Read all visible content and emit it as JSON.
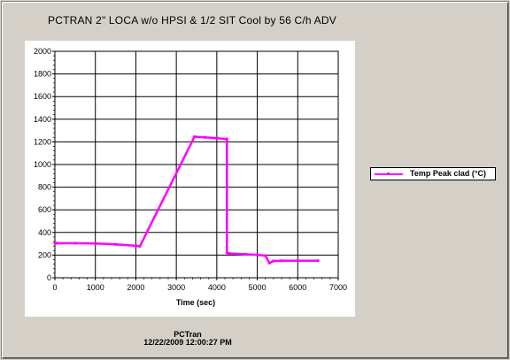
{
  "window": {
    "title": "PCTRAN 2\" LOCA w/o HPSI & 1/2 SIT Cool by 56 C/h ADV"
  },
  "footer": {
    "app": "PCTran",
    "timestamp": "12/22/2009 12:00:27 PM"
  },
  "colors": {
    "series": "#ff00ff",
    "background": "#d4d0c8",
    "plot_background": "#ffffff"
  },
  "chart_data": {
    "type": "line",
    "title": "PCTRAN 2\" LOCA w/o HPSI & 1/2 SIT Cool by 56 C/h ADV",
    "xlabel": "Time (sec)",
    "ylabel": "",
    "xlim": [
      0,
      7000
    ],
    "ylim": [
      0,
      2000
    ],
    "x_ticks": [
      0,
      1000,
      2000,
      3000,
      4000,
      5000,
      6000,
      7000
    ],
    "y_ticks": [
      0,
      200,
      400,
      600,
      800,
      1000,
      1200,
      1400,
      1600,
      1800,
      2000
    ],
    "grid": true,
    "legend_position": "right",
    "series": [
      {
        "name": "Temp Peak clad (°C)",
        "color": "#ff00ff",
        "x": [
          0,
          50,
          500,
          1000,
          1500,
          2000,
          2100,
          3450,
          3700,
          4000,
          4250,
          4250,
          4300,
          4700,
          5000,
          5200,
          5300,
          5400,
          5600,
          6000,
          6500
        ],
        "y": [
          310,
          305,
          305,
          302,
          295,
          282,
          278,
          1245,
          1240,
          1232,
          1225,
          220,
          215,
          208,
          202,
          195,
          130,
          148,
          150,
          150,
          150
        ]
      }
    ]
  }
}
